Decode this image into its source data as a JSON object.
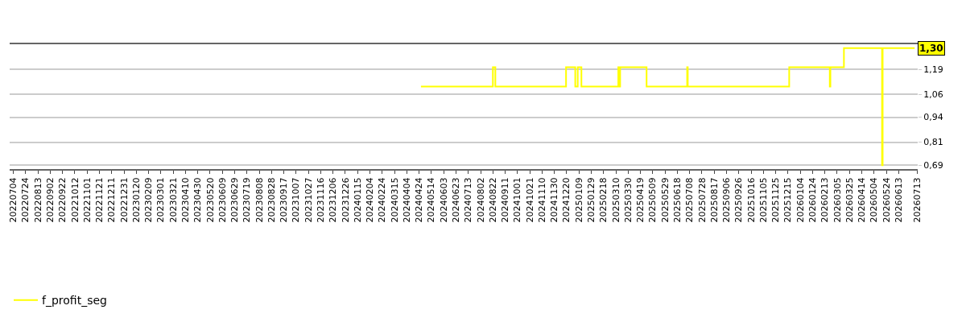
{
  "chart_data": {
    "type": "step",
    "series": [
      {
        "name": "f_profit_seg",
        "color": "#ffff00",
        "x": [
          "2024-04-27",
          "2024-08-22",
          "2024-08-26",
          "2024-12-19",
          "2025-01-03",
          "2025-01-07",
          "2025-01-13",
          "2025-03-14",
          "2025-03-16",
          "2025-03-17",
          "2025-04-29",
          "2025-07-04",
          "2025-07-05",
          "2025-12-17",
          "2026-02-21",
          "2026-02-22",
          "2026-03-16",
          "2026-05-17",
          "2026-05-18",
          "2026-07-09"
        ],
        "values": [
          1.1,
          1.2,
          1.1,
          1.2,
          1.1,
          1.2,
          1.1,
          1.2,
          1.1,
          1.2,
          1.1,
          1.2,
          1.1,
          1.2,
          1.1,
          1.2,
          1.3,
          0.69,
          1.3,
          1.3
        ]
      }
    ],
    "annotations": [
      {
        "text": "1,30",
        "y": 1.3
      }
    ],
    "xlim": [
      "2022-06-28",
      "2026-07-14"
    ],
    "ylim": [
      0.67,
      1.32
    ],
    "yticks": [
      {
        "value": 0.69,
        "label": "0,69"
      },
      {
        "value": 0.81,
        "label": "0,81"
      },
      {
        "value": 0.94,
        "label": "0,94"
      },
      {
        "value": 1.06,
        "label": "1,06"
      },
      {
        "value": 1.19,
        "label": "1,19"
      }
    ],
    "xticks": [
      {
        "value": "2022-07-04",
        "label": "20220704"
      },
      {
        "value": "2022-07-24",
        "label": "20220724"
      },
      {
        "value": "2022-08-13",
        "label": "20220813"
      },
      {
        "value": "2022-09-02",
        "label": "20220902"
      },
      {
        "value": "2022-09-22",
        "label": "20220922"
      },
      {
        "value": "2022-10-12",
        "label": "20221012"
      },
      {
        "value": "2022-11-01",
        "label": "20221101"
      },
      {
        "value": "2022-11-21",
        "label": "20221121"
      },
      {
        "value": "2022-12-11",
        "label": "20221211"
      },
      {
        "value": "2022-12-31",
        "label": "20221231"
      },
      {
        "value": "2023-01-20",
        "label": "20230120"
      },
      {
        "value": "2023-02-09",
        "label": "20230209"
      },
      {
        "value": "2023-03-01",
        "label": "20230301"
      },
      {
        "value": "2023-03-21",
        "label": "20230321"
      },
      {
        "value": "2023-04-10",
        "label": "20230410"
      },
      {
        "value": "2023-04-30",
        "label": "20230430"
      },
      {
        "value": "2023-05-20",
        "label": "20230520"
      },
      {
        "value": "2023-06-09",
        "label": "20230609"
      },
      {
        "value": "2023-06-29",
        "label": "20230629"
      },
      {
        "value": "2023-07-19",
        "label": "20230719"
      },
      {
        "value": "2023-08-08",
        "label": "20230808"
      },
      {
        "value": "2023-08-28",
        "label": "20230828"
      },
      {
        "value": "2023-09-17",
        "label": "20230917"
      },
      {
        "value": "2023-10-07",
        "label": "20231007"
      },
      {
        "value": "2023-10-27",
        "label": "20231027"
      },
      {
        "value": "2023-11-16",
        "label": "20231116"
      },
      {
        "value": "2023-12-06",
        "label": "20231206"
      },
      {
        "value": "2023-12-26",
        "label": "20231226"
      },
      {
        "value": "2024-01-15",
        "label": "20240115"
      },
      {
        "value": "2024-02-04",
        "label": "20240204"
      },
      {
        "value": "2024-02-24",
        "label": "20240224"
      },
      {
        "value": "2024-03-15",
        "label": "20240315"
      },
      {
        "value": "2024-04-04",
        "label": "20240404"
      },
      {
        "value": "2024-04-24",
        "label": "20240424"
      },
      {
        "value": "2024-05-14",
        "label": "20240514"
      },
      {
        "value": "2024-06-03",
        "label": "20240603"
      },
      {
        "value": "2024-06-23",
        "label": "20240623"
      },
      {
        "value": "2024-07-13",
        "label": "20240713"
      },
      {
        "value": "2024-08-02",
        "label": "20240802"
      },
      {
        "value": "2024-08-22",
        "label": "20240822"
      },
      {
        "value": "2024-09-11",
        "label": "20240911"
      },
      {
        "value": "2024-10-01",
        "label": "20241001"
      },
      {
        "value": "2024-10-21",
        "label": "20241021"
      },
      {
        "value": "2024-11-10",
        "label": "20241110"
      },
      {
        "value": "2024-11-30",
        "label": "20241130"
      },
      {
        "value": "2024-12-20",
        "label": "20241220"
      },
      {
        "value": "2025-01-09",
        "label": "20250109"
      },
      {
        "value": "2025-01-29",
        "label": "20250129"
      },
      {
        "value": "2025-02-18",
        "label": "20250218"
      },
      {
        "value": "2025-03-10",
        "label": "20250310"
      },
      {
        "value": "2025-03-30",
        "label": "20250330"
      },
      {
        "value": "2025-04-19",
        "label": "20250419"
      },
      {
        "value": "2025-05-09",
        "label": "20250509"
      },
      {
        "value": "2025-05-29",
        "label": "20250529"
      },
      {
        "value": "2025-06-18",
        "label": "20250618"
      },
      {
        "value": "2025-07-08",
        "label": "20250708"
      },
      {
        "value": "2025-07-28",
        "label": "20250728"
      },
      {
        "value": "2025-08-17",
        "label": "20250817"
      },
      {
        "value": "2025-09-06",
        "label": "20250906"
      },
      {
        "value": "2025-09-26",
        "label": "20250926"
      },
      {
        "value": "2025-10-16",
        "label": "20251016"
      },
      {
        "value": "2025-11-05",
        "label": "20251105"
      },
      {
        "value": "2025-11-25",
        "label": "20251125"
      },
      {
        "value": "2025-12-15",
        "label": "20251215"
      },
      {
        "value": "2026-01-04",
        "label": "20260104"
      },
      {
        "value": "2026-01-24",
        "label": "20260124"
      },
      {
        "value": "2026-02-13",
        "label": "20260213"
      },
      {
        "value": "2026-03-05",
        "label": "20260305"
      },
      {
        "value": "2026-03-25",
        "label": "20260325"
      },
      {
        "value": "2026-04-14",
        "label": "20260414"
      },
      {
        "value": "2026-05-04",
        "label": "20260504"
      },
      {
        "value": "2026-05-24",
        "label": "20260524"
      },
      {
        "value": "2026-06-13",
        "label": "20260613"
      },
      {
        "value": "2026-07-13",
        "label": "20260713"
      }
    ],
    "grid": "y",
    "legend": "bottom left",
    "marker": "none",
    "line_style": "solid"
  }
}
